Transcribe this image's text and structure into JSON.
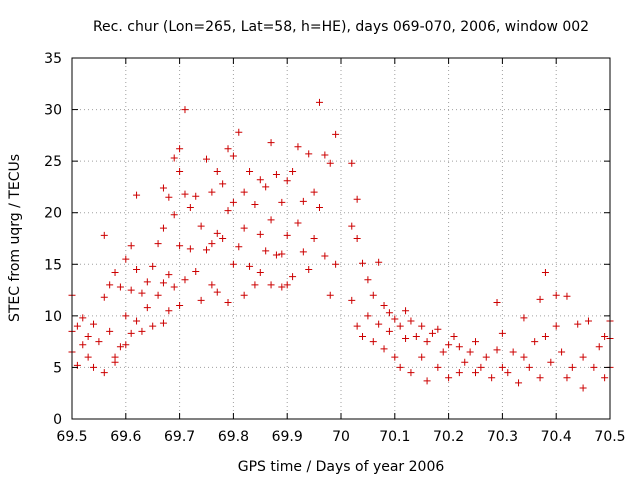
{
  "chart_data": {
    "type": "scatter",
    "title": "Rec. chur (Lon=265, Lat=58, h=HE), days 069-070, 2006, window 002",
    "xlabel": "GPS time / Days of year 2006",
    "ylabel": "STEC from uqrg / TECUs",
    "xlim": [
      69.5,
      70.5
    ],
    "ylim": [
      0,
      35
    ],
    "xticks": [
      69.5,
      69.6,
      69.7,
      69.8,
      69.9,
      70.0,
      70.1,
      70.2,
      70.3,
      70.4,
      70.5
    ],
    "xtick_labels": [
      "69.5",
      "69.6",
      "69.7",
      "69.8",
      "69.9",
      "70",
      "70.1",
      "70.2",
      "70.3",
      "70.4",
      "70.5"
    ],
    "yticks": [
      0,
      5,
      10,
      15,
      20,
      25,
      30,
      35
    ],
    "ytick_labels": [
      "0",
      "5",
      "10",
      "15",
      "20",
      "25",
      "30",
      "35"
    ],
    "grid": true,
    "marker": "+",
    "color": "#cc0000",
    "points": [
      [
        69.5,
        12.0
      ],
      [
        69.5,
        8.5
      ],
      [
        69.5,
        6.5
      ],
      [
        69.51,
        9.0
      ],
      [
        69.51,
        5.2
      ],
      [
        69.52,
        7.2
      ],
      [
        69.52,
        9.8
      ],
      [
        69.53,
        8.0
      ],
      [
        69.53,
        6.0
      ],
      [
        69.54,
        9.2
      ],
      [
        69.54,
        5.0
      ],
      [
        69.55,
        7.5
      ],
      [
        69.56,
        11.8
      ],
      [
        69.56,
        17.8
      ],
      [
        69.56,
        4.5
      ],
      [
        69.57,
        13.0
      ],
      [
        69.57,
        8.5
      ],
      [
        69.58,
        14.2
      ],
      [
        69.58,
        6.0
      ],
      [
        69.58,
        5.5
      ],
      [
        69.59,
        12.8
      ],
      [
        69.59,
        7.0
      ],
      [
        69.6,
        15.5
      ],
      [
        69.6,
        10.0
      ],
      [
        69.6,
        7.2
      ],
      [
        69.61,
        12.5
      ],
      [
        69.61,
        16.8
      ],
      [
        69.61,
        8.3
      ],
      [
        69.62,
        21.7
      ],
      [
        69.62,
        14.5
      ],
      [
        69.62,
        9.5
      ],
      [
        69.63,
        12.2
      ],
      [
        69.63,
        8.5
      ],
      [
        69.64,
        13.3
      ],
      [
        69.64,
        10.8
      ],
      [
        69.65,
        14.8
      ],
      [
        69.65,
        9.0
      ],
      [
        69.66,
        17.0
      ],
      [
        69.66,
        12.0
      ],
      [
        69.67,
        22.4
      ],
      [
        69.67,
        18.5
      ],
      [
        69.67,
        13.2
      ],
      [
        69.67,
        9.3
      ],
      [
        69.68,
        21.5
      ],
      [
        69.68,
        14.0
      ],
      [
        69.68,
        10.5
      ],
      [
        69.69,
        25.3
      ],
      [
        69.69,
        19.8
      ],
      [
        69.69,
        12.8
      ],
      [
        69.7,
        26.2
      ],
      [
        69.7,
        24.0
      ],
      [
        69.7,
        16.8
      ],
      [
        69.7,
        11.0
      ],
      [
        69.71,
        30.0
      ],
      [
        69.71,
        21.8
      ],
      [
        69.71,
        13.5
      ],
      [
        69.72,
        20.5
      ],
      [
        69.72,
        16.5
      ],
      [
        69.73,
        21.6
      ],
      [
        69.73,
        14.3
      ],
      [
        69.74,
        18.7
      ],
      [
        69.74,
        11.5
      ],
      [
        69.75,
        25.2
      ],
      [
        69.75,
        16.4
      ],
      [
        69.76,
        22.0
      ],
      [
        69.76,
        17.0
      ],
      [
        69.76,
        13.0
      ],
      [
        69.77,
        24.0
      ],
      [
        69.77,
        18.0
      ],
      [
        69.77,
        12.3
      ],
      [
        69.78,
        22.8
      ],
      [
        69.78,
        17.5
      ],
      [
        69.79,
        26.2
      ],
      [
        69.79,
        20.2
      ],
      [
        69.79,
        11.3
      ],
      [
        69.8,
        25.5
      ],
      [
        69.8,
        21.0
      ],
      [
        69.8,
        15.0
      ],
      [
        69.81,
        27.8
      ],
      [
        69.81,
        16.7
      ],
      [
        69.82,
        22.0
      ],
      [
        69.82,
        18.5
      ],
      [
        69.82,
        12.0
      ],
      [
        69.83,
        24.0
      ],
      [
        69.83,
        14.8
      ],
      [
        69.84,
        20.8
      ],
      [
        69.84,
        13.0
      ],
      [
        69.85,
        23.2
      ],
      [
        69.85,
        17.9
      ],
      [
        69.85,
        14.2
      ],
      [
        69.86,
        22.5
      ],
      [
        69.86,
        16.3
      ],
      [
        69.87,
        26.8
      ],
      [
        69.87,
        19.3
      ],
      [
        69.87,
        13.0
      ],
      [
        69.88,
        23.7
      ],
      [
        69.88,
        15.9
      ],
      [
        69.89,
        21.0
      ],
      [
        69.89,
        16.0
      ],
      [
        69.89,
        12.8
      ],
      [
        69.9,
        23.1
      ],
      [
        69.9,
        17.8
      ],
      [
        69.9,
        13.0
      ],
      [
        69.91,
        24.0
      ],
      [
        69.91,
        13.8
      ],
      [
        69.92,
        26.4
      ],
      [
        69.92,
        19.0
      ],
      [
        69.93,
        21.1
      ],
      [
        69.93,
        16.2
      ],
      [
        69.94,
        25.7
      ],
      [
        69.94,
        14.5
      ],
      [
        69.95,
        22.0
      ],
      [
        69.95,
        17.5
      ],
      [
        69.96,
        30.7
      ],
      [
        69.96,
        20.5
      ],
      [
        69.97,
        25.6
      ],
      [
        69.97,
        15.8
      ],
      [
        69.98,
        24.8
      ],
      [
        69.98,
        12.0
      ],
      [
        69.99,
        27.6
      ],
      [
        69.99,
        15.0
      ],
      [
        70.02,
        24.8
      ],
      [
        70.02,
        18.7
      ],
      [
        70.02,
        11.5
      ],
      [
        70.03,
        21.3
      ],
      [
        70.03,
        17.5
      ],
      [
        70.03,
        9.0
      ],
      [
        70.04,
        15.1
      ],
      [
        70.04,
        8.0
      ],
      [
        70.05,
        13.5
      ],
      [
        70.05,
        10.0
      ],
      [
        70.06,
        12.0
      ],
      [
        70.06,
        7.5
      ],
      [
        70.07,
        15.2
      ],
      [
        70.07,
        9.2
      ],
      [
        70.08,
        11.0
      ],
      [
        70.08,
        6.8
      ],
      [
        70.09,
        10.3
      ],
      [
        70.09,
        8.5
      ],
      [
        70.1,
        9.7
      ],
      [
        70.1,
        6.0
      ],
      [
        70.11,
        9.0
      ],
      [
        70.11,
        5.0
      ],
      [
        70.12,
        10.5
      ],
      [
        70.12,
        7.8
      ],
      [
        70.13,
        9.5
      ],
      [
        70.13,
        4.5
      ],
      [
        70.14,
        8.0
      ],
      [
        70.15,
        9.0
      ],
      [
        70.15,
        6.0
      ],
      [
        70.16,
        7.5
      ],
      [
        70.16,
        3.7
      ],
      [
        70.17,
        8.3
      ],
      [
        70.18,
        8.7
      ],
      [
        70.18,
        5.0
      ],
      [
        70.19,
        6.5
      ],
      [
        70.2,
        7.2
      ],
      [
        70.2,
        4.0
      ],
      [
        70.21,
        8.0
      ],
      [
        70.22,
        7.0
      ],
      [
        70.22,
        4.5
      ],
      [
        70.23,
        5.5
      ],
      [
        70.24,
        6.5
      ],
      [
        70.25,
        4.5
      ],
      [
        70.25,
        7.5
      ],
      [
        70.26,
        5.0
      ],
      [
        70.27,
        6.0
      ],
      [
        70.28,
        4.0
      ],
      [
        70.29,
        6.7
      ],
      [
        70.29,
        11.3
      ],
      [
        70.3,
        8.3
      ],
      [
        70.3,
        5.0
      ],
      [
        70.31,
        4.5
      ],
      [
        70.32,
        6.5
      ],
      [
        70.33,
        3.5
      ],
      [
        70.34,
        9.8
      ],
      [
        70.34,
        6.0
      ],
      [
        70.35,
        5.0
      ],
      [
        70.36,
        7.5
      ],
      [
        70.37,
        11.6
      ],
      [
        70.37,
        4.0
      ],
      [
        70.38,
        14.2
      ],
      [
        70.38,
        8.0
      ],
      [
        70.39,
        5.5
      ],
      [
        70.4,
        12.0
      ],
      [
        70.4,
        9.0
      ],
      [
        70.41,
        6.5
      ],
      [
        70.42,
        11.9
      ],
      [
        70.42,
        4.0
      ],
      [
        70.43,
        5.0
      ],
      [
        70.44,
        9.2
      ],
      [
        70.45,
        3.0
      ],
      [
        70.45,
        6.0
      ],
      [
        70.46,
        9.5
      ],
      [
        70.47,
        5.0
      ],
      [
        70.48,
        7.0
      ],
      [
        70.49,
        4.0
      ],
      [
        70.49,
        8.0
      ],
      [
        70.5,
        9.5
      ],
      [
        70.5,
        7.8
      ],
      [
        70.5,
        5.0
      ]
    ]
  }
}
